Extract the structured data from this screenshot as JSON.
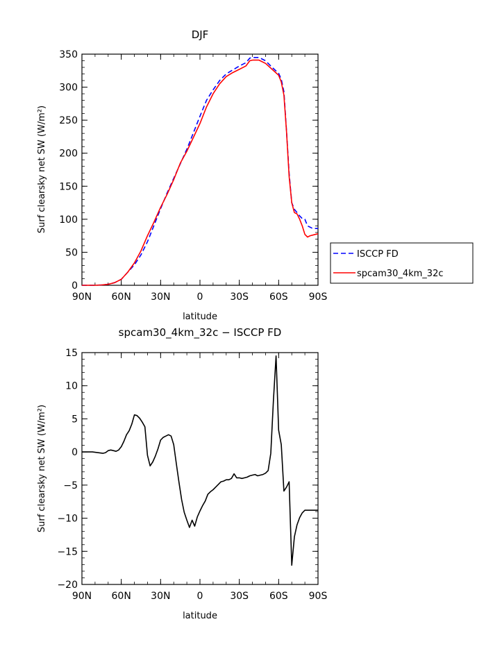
{
  "chart_data": [
    {
      "type": "line",
      "title": "DJF",
      "xlabel": "latitude",
      "ylabel": "Surf clearsky net SW (W/m²)",
      "ylim": [
        0,
        350
      ],
      "yticks": [
        0,
        50,
        100,
        150,
        200,
        250,
        300,
        350
      ],
      "xticks": [
        "90N",
        "60N",
        "30N",
        "0",
        "30S",
        "60S",
        "90S"
      ],
      "grid": false,
      "legend": "right",
      "series": [
        {
          "name": "ISCCP FD",
          "color": "#0000ff",
          "dash": "dashed",
          "x": [
            -90,
            -85,
            -80,
            -75,
            -70,
            -65,
            -60,
            -55,
            -50,
            -45,
            -40,
            -35,
            -30,
            -25,
            -20,
            -15,
            -10,
            -5,
            0,
            5,
            10,
            15,
            20,
            25,
            30,
            35,
            38,
            40,
            45,
            50,
            55,
            60,
            62,
            64,
            66,
            68,
            70,
            72,
            74,
            76,
            78,
            80,
            82,
            84,
            86,
            88,
            90
          ],
          "values": [
            0,
            0,
            0,
            0.5,
            1.5,
            4,
            9,
            20,
            31,
            46,
            66,
            91,
            116,
            140,
            162,
            184,
            206,
            231,
            256,
            280,
            296,
            310,
            320,
            326,
            332,
            337,
            344,
            345,
            345,
            340,
            330,
            321,
            312,
            293,
            233,
            170,
            125,
            115,
            110,
            105,
            101,
            100,
            90,
            88,
            86,
            86,
            86
          ]
        },
        {
          "name": "spcam30_4km_32c",
          "color": "#ff0000",
          "dash": "solid",
          "x": [
            -90,
            -85,
            -80,
            -75,
            -70,
            -65,
            -60,
            -55,
            -50,
            -45,
            -40,
            -35,
            -30,
            -25,
            -20,
            -15,
            -10,
            -5,
            0,
            5,
            10,
            15,
            20,
            25,
            30,
            35,
            38,
            40,
            45,
            50,
            55,
            60,
            62,
            64,
            66,
            68,
            70,
            72,
            74,
            76,
            78,
            80,
            82,
            84,
            86,
            88,
            90
          ],
          "values": [
            0,
            0,
            0,
            0.5,
            1.5,
            4,
            9,
            20,
            34,
            52,
            75,
            96,
            118,
            138,
            160,
            185,
            203,
            224,
            245,
            270,
            290,
            305,
            316,
            322,
            327,
            332,
            340,
            341,
            341,
            336,
            327,
            318,
            308,
            288,
            232,
            165,
            125,
            110,
            108,
            100,
            90,
            77,
            73,
            75,
            76,
            77,
            78
          ]
        }
      ]
    },
    {
      "type": "line",
      "title": "spcam30_4km_32c − ISCCP FD",
      "xlabel": "latitude",
      "ylabel": "Surf clearsky net SW (W/m²)",
      "ylim": [
        -20,
        15
      ],
      "yticks": [
        -20,
        -15,
        -10,
        -5,
        0,
        5,
        10,
        15
      ],
      "xticks": [
        "90N",
        "60N",
        "30N",
        "0",
        "30S",
        "60S",
        "90S"
      ],
      "grid": false,
      "series": [
        {
          "color": "#000000",
          "x": [
            -90,
            -86,
            -82,
            -78,
            -74,
            -72,
            -70,
            -68,
            -66,
            -64,
            -62,
            -60,
            -58,
            -56,
            -54,
            -52,
            -50,
            -48,
            -46,
            -44,
            -42,
            -40,
            -38,
            -36,
            -34,
            -32,
            -30,
            -28,
            -26,
            -24,
            -22,
            -20,
            -18,
            -16,
            -14,
            -12,
            -10,
            -8,
            -6,
            -4,
            -2,
            0,
            2,
            4,
            6,
            8,
            10,
            12,
            14,
            16,
            18,
            20,
            22,
            24,
            26,
            28,
            30,
            32,
            34,
            36,
            38,
            40,
            42,
            44,
            46,
            48,
            50,
            52,
            54,
            56,
            58,
            60,
            62,
            64,
            66,
            68,
            70,
            72,
            74,
            76,
            78,
            80,
            82,
            84,
            86,
            88,
            90
          ],
          "values": [
            0,
            0,
            0,
            -0.1,
            -0.2,
            -0.1,
            0.2,
            0.3,
            0.2,
            0.1,
            0.3,
            0.8,
            1.6,
            2.6,
            3.2,
            4.2,
            5.6,
            5.5,
            5.1,
            4.5,
            3.8,
            -0.5,
            -2.1,
            -1.5,
            -0.6,
            0.5,
            1.8,
            2.2,
            2.4,
            2.6,
            2.4,
            1.1,
            -1.8,
            -4.6,
            -7.2,
            -9.1,
            -10.3,
            -11.4,
            -10.3,
            -11.2,
            -9.8,
            -8.9,
            -8.1,
            -7.4,
            -6.4,
            -6.0,
            -5.7,
            -5.3,
            -4.9,
            -4.5,
            -4.4,
            -4.2,
            -4.2,
            -4.0,
            -3.3,
            -3.9,
            -3.9,
            -4.0,
            -3.9,
            -3.8,
            -3.6,
            -3.5,
            -3.4,
            -3.6,
            -3.5,
            -3.4,
            -3.2,
            -2.8,
            -0.2,
            7.8,
            14.5,
            3.3,
            1.1,
            -5.9,
            -5.3,
            -4.5,
            -17.1,
            -12.8,
            -11.0,
            -9.9,
            -9.2,
            -8.8,
            -8.8,
            -8.8,
            -8.8,
            -8.8,
            -8.8
          ]
        }
      ]
    }
  ]
}
